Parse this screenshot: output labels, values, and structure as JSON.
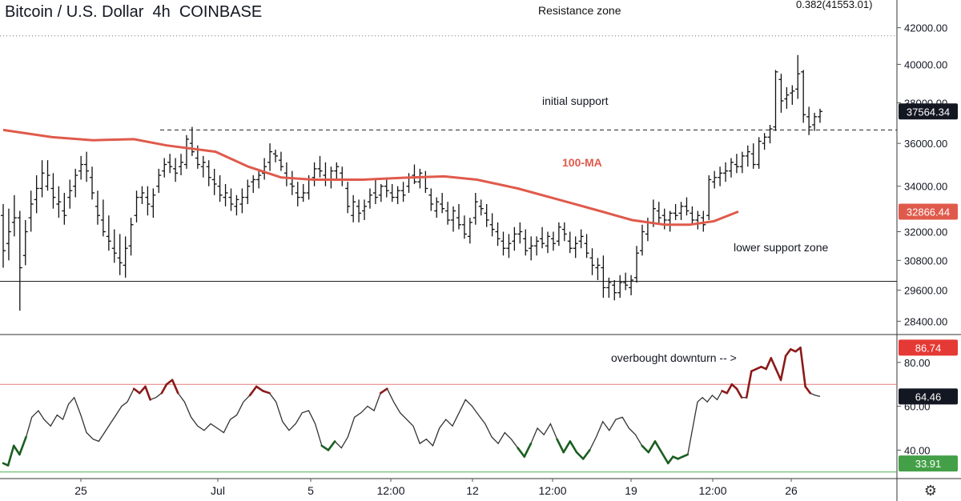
{
  "header": {
    "title": "Bitcoin / U.S. Dollar  4h  COINBASE"
  },
  "colors": {
    "ma": "#e05a4b",
    "rsi_line": "#333333",
    "overbought": "#e47b7b",
    "oversold": "#4caf50",
    "rsi_hot": "#8b1a1a",
    "rsi_cold": "#1b5e20",
    "price_tag_bg": "#131722",
    "ma_tag_bg": "#e05a4b",
    "rsi_tag_red": "#e53935",
    "rsi_tag_green": "#43a047"
  },
  "annotations": {
    "resistance_zone": "Resistance zone",
    "fib": "0.382(41553.01)",
    "initial_support": "initial support",
    "ma_label": "100-MA",
    "lower_support": "lower support zone",
    "overbought": "overbought downturn -- >"
  },
  "price_axis": {
    "ticks": [
      "42000.00",
      "40000.00",
      "38000.00",
      "36000.00",
      "34000.00",
      "32000.00",
      "30800.00",
      "29600.00",
      "28400.00"
    ]
  },
  "rsi_axis": {
    "ticks": [
      "80.00",
      "60.00",
      "40.00"
    ]
  },
  "time_axis": {
    "ticks": [
      "25",
      "Jul",
      "5",
      "12:00",
      "12",
      "12:00",
      "19",
      "12:00",
      "26"
    ]
  },
  "tags": {
    "last_price": "37564.34",
    "ma_value": "32866.44",
    "rsi_high": "86.74",
    "rsi_current": "64.46",
    "rsi_low": "33.91"
  },
  "icons": {
    "settings": "gear-icon"
  },
  "chart_data": {
    "type": "line",
    "title": "Bitcoin / U.S. Dollar  4h  COINBASE",
    "scale": "log",
    "ylim": [
      27900,
      42300
    ],
    "reference_levels": {
      "resistance_zone": 41553,
      "initial_support": 36650,
      "lower_support": 29950
    },
    "candles": [
      [
        32700,
        33200,
        30500,
        31200
      ],
      [
        31500,
        33000,
        30800,
        32000
      ],
      [
        32400,
        33600,
        31800,
        32600
      ],
      [
        32600,
        32900,
        28800,
        30500
      ],
      [
        31000,
        32500,
        30600,
        32000
      ],
      [
        32600,
        33800,
        32000,
        33200
      ],
      [
        33400,
        34500,
        32800,
        33900
      ],
      [
        33900,
        35200,
        33500,
        34600
      ],
      [
        34000,
        35200,
        33800,
        34500
      ],
      [
        33900,
        34600,
        33000,
        33500
      ],
      [
        33200,
        34000,
        32600,
        33300
      ],
      [
        32900,
        33700,
        32300,
        32700
      ],
      [
        33500,
        34300,
        33000,
        33800
      ],
      [
        34000,
        34800,
        33500,
        34500
      ],
      [
        34700,
        35400,
        34300,
        35000
      ],
      [
        35000,
        35600,
        34200,
        34700
      ],
      [
        34400,
        34900,
        33400,
        33700
      ],
      [
        33100,
        33800,
        32300,
        32700
      ],
      [
        32500,
        33400,
        31800,
        32000
      ],
      [
        31800,
        32700,
        31200,
        31600
      ],
      [
        31300,
        32100,
        30700,
        31100
      ],
      [
        30900,
        31900,
        30200,
        30700
      ],
      [
        30600,
        31800,
        30100,
        31300
      ],
      [
        31400,
        32600,
        31000,
        32300
      ],
      [
        32700,
        33800,
        32400,
        33500
      ],
      [
        33500,
        34000,
        33200,
        33700
      ],
      [
        33500,
        34000,
        32700,
        33200
      ],
      [
        33100,
        33900,
        32600,
        33600
      ],
      [
        34000,
        34800,
        33700,
        34500
      ],
      [
        34700,
        35300,
        34400,
        35000
      ],
      [
        35100,
        35500,
        34600,
        34900
      ],
      [
        34800,
        35300,
        34200,
        34600
      ],
      [
        34900,
        35500,
        34500,
        35100
      ],
      [
        35000,
        36400,
        34800,
        36200
      ],
      [
        36000,
        36800,
        35400,
        35600
      ],
      [
        35300,
        35900,
        34800,
        35000
      ],
      [
        34900,
        35400,
        34400,
        35100
      ],
      [
        34900,
        35200,
        34000,
        34400
      ],
      [
        34300,
        34800,
        33600,
        34100
      ],
      [
        34000,
        34500,
        33300,
        33600
      ],
      [
        33500,
        34100,
        33100,
        33700
      ],
      [
        33500,
        33900,
        32900,
        33200
      ],
      [
        33100,
        33600,
        32700,
        33400
      ],
      [
        33200,
        33900,
        32800,
        33500
      ],
      [
        33500,
        34300,
        33200,
        34000
      ],
      [
        34200,
        34500,
        33700,
        34300
      ],
      [
        34300,
        34700,
        33900,
        34500
      ],
      [
        34600,
        35300,
        34300,
        34900
      ],
      [
        35100,
        36000,
        34700,
        35600
      ],
      [
        35500,
        35700,
        35100,
        35400
      ],
      [
        35200,
        35600,
        34700,
        34900
      ],
      [
        34600,
        35100,
        34000,
        34400
      ],
      [
        34100,
        34700,
        33600,
        34000
      ],
      [
        33700,
        34200,
        33100,
        33500
      ],
      [
        33500,
        34100,
        33300,
        33700
      ],
      [
        33700,
        34500,
        33400,
        34300
      ],
      [
        34400,
        35100,
        34000,
        34800
      ],
      [
        34800,
        35400,
        34400,
        34700
      ],
      [
        34500,
        35100,
        34000,
        34300
      ],
      [
        34300,
        34900,
        33900,
        34700
      ],
      [
        34700,
        35100,
        34300,
        34900
      ],
      [
        34600,
        34900,
        34000,
        34300
      ],
      [
        33900,
        34200,
        32800,
        33100
      ],
      [
        32700,
        33600,
        32400,
        33300
      ],
      [
        33100,
        33400,
        32400,
        32800
      ],
      [
        32900,
        33400,
        32500,
        33100
      ],
      [
        33300,
        33900,
        33000,
        33600
      ],
      [
        33700,
        34300,
        33200,
        33500
      ],
      [
        33600,
        34100,
        33300,
        34000
      ],
      [
        34000,
        34400,
        33500,
        33800
      ],
      [
        33700,
        34100,
        33300,
        33500
      ],
      [
        33500,
        34000,
        33200,
        33800
      ],
      [
        33800,
        34200,
        33300,
        33600
      ],
      [
        34000,
        34600,
        33700,
        34400
      ],
      [
        34500,
        35000,
        34100,
        34200
      ],
      [
        34200,
        34800,
        33900,
        34600
      ],
      [
        34400,
        34700,
        33700,
        33900
      ],
      [
        33600,
        33900,
        32900,
        33200
      ],
      [
        32900,
        33500,
        32600,
        33300
      ],
      [
        33200,
        33700,
        32800,
        33000
      ],
      [
        32900,
        33300,
        32300,
        32500
      ],
      [
        32500,
        33100,
        32000,
        32900
      ],
      [
        32600,
        33200,
        32100,
        32300
      ],
      [
        32300,
        32700,
        31700,
        31900
      ],
      [
        31800,
        32600,
        31500,
        32400
      ],
      [
        32600,
        33700,
        32300,
        33300
      ],
      [
        33100,
        33400,
        32700,
        33000
      ],
      [
        32800,
        33200,
        32200,
        32500
      ],
      [
        32300,
        32800,
        31800,
        32100
      ],
      [
        32000,
        32400,
        31400,
        31700
      ],
      [
        31600,
        32000,
        31000,
        31300
      ],
      [
        31300,
        31900,
        30900,
        31500
      ],
      [
        31600,
        32200,
        31200,
        31900
      ],
      [
        31900,
        32400,
        31500,
        32000
      ],
      [
        31700,
        32100,
        31000,
        31200
      ],
      [
        31300,
        31800,
        30800,
        31400
      ],
      [
        31400,
        31800,
        31000,
        31600
      ],
      [
        31700,
        32200,
        31300,
        31500
      ],
      [
        31400,
        32000,
        31100,
        31800
      ],
      [
        31700,
        32000,
        31200,
        31500
      ],
      [
        31600,
        32400,
        31400,
        32200
      ],
      [
        32100,
        32400,
        31600,
        31900
      ],
      [
        31600,
        32000,
        31100,
        31300
      ],
      [
        31300,
        31800,
        30900,
        31500
      ],
      [
        31600,
        32100,
        31300,
        31800
      ],
      [
        31500,
        31900,
        30900,
        31100
      ],
      [
        30900,
        31300,
        30200,
        30600
      ],
      [
        30500,
        30900,
        30000,
        30600
      ],
      [
        30500,
        31000,
        29300,
        29700
      ],
      [
        29700,
        30100,
        29300,
        29900
      ],
      [
        29800,
        30000,
        29200,
        29500
      ],
      [
        29500,
        30200,
        29300,
        29900
      ],
      [
        29900,
        30300,
        29600,
        29800
      ],
      [
        29700,
        30200,
        29400,
        30000
      ],
      [
        30100,
        31400,
        29900,
        31100
      ],
      [
        31200,
        32300,
        31000,
        32000
      ],
      [
        31900,
        32600,
        31600,
        32400
      ],
      [
        32400,
        33400,
        32200,
        33000
      ],
      [
        32900,
        33300,
        32300,
        32600
      ],
      [
        32700,
        33000,
        32100,
        32500
      ],
      [
        32500,
        32900,
        32000,
        32800
      ],
      [
        32800,
        33200,
        32500,
        32700
      ],
      [
        32800,
        33300,
        32500,
        33100
      ],
      [
        33100,
        33500,
        32700,
        32900
      ],
      [
        32800,
        33100,
        32300,
        32500
      ],
      [
        32500,
        32900,
        32100,
        32700
      ],
      [
        32600,
        32900,
        32000,
        32300
      ],
      [
        32700,
        34500,
        32500,
        34300
      ],
      [
        34200,
        34700,
        33900,
        34400
      ],
      [
        34400,
        34900,
        34000,
        34600
      ],
      [
        34600,
        35100,
        34200,
        34700
      ],
      [
        34700,
        35300,
        34400,
        35100
      ],
      [
        35000,
        35500,
        34600,
        34900
      ],
      [
        34900,
        35600,
        34600,
        35400
      ],
      [
        35400,
        35900,
        34900,
        35600
      ],
      [
        35500,
        36000,
        34800,
        35000
      ],
      [
        35000,
        36300,
        34800,
        36100
      ],
      [
        36000,
        36500,
        35700,
        36300
      ],
      [
        36300,
        36900,
        36000,
        36700
      ],
      [
        36800,
        39700,
        36600,
        39600
      ],
      [
        39200,
        39500,
        37500,
        38100
      ],
      [
        38200,
        38800,
        37700,
        38400
      ],
      [
        38500,
        38900,
        37900,
        38600
      ],
      [
        38700,
        40500,
        38200,
        39500
      ],
      [
        39600,
        39700,
        37000,
        37400
      ],
      [
        37300,
        37800,
        36400,
        36800
      ],
      [
        36900,
        37500,
        36600,
        37300
      ],
      [
        37300,
        37700,
        37000,
        37564
      ]
    ],
    "ma100": [
      [
        0,
        36650
      ],
      [
        0.06,
        36300
      ],
      [
        0.11,
        36150
      ],
      [
        0.16,
        36200
      ],
      [
        0.2,
        35900
      ],
      [
        0.26,
        35600
      ],
      [
        0.3,
        34900
      ],
      [
        0.34,
        34400
      ],
      [
        0.38,
        34300
      ],
      [
        0.44,
        34300
      ],
      [
        0.5,
        34400
      ],
      [
        0.54,
        34450
      ],
      [
        0.58,
        34300
      ],
      [
        0.63,
        33900
      ],
      [
        0.68,
        33400
      ],
      [
        0.73,
        32900
      ],
      [
        0.77,
        32500
      ],
      [
        0.81,
        32300
      ],
      [
        0.84,
        32300
      ],
      [
        0.87,
        32450
      ],
      [
        0.9,
        32870
      ]
    ],
    "rsi": [
      [
        0,
        34
      ],
      [
        0.006,
        33
      ],
      [
        0.013,
        42
      ],
      [
        0.02,
        38
      ],
      [
        0.028,
        46
      ],
      [
        0.035,
        55
      ],
      [
        0.043,
        58
      ],
      [
        0.05,
        54
      ],
      [
        0.058,
        51
      ],
      [
        0.066,
        56
      ],
      [
        0.073,
        54
      ],
      [
        0.08,
        61
      ],
      [
        0.087,
        64
      ],
      [
        0.095,
        56
      ],
      [
        0.102,
        48
      ],
      [
        0.11,
        45
      ],
      [
        0.117,
        44
      ],
      [
        0.124,
        48
      ],
      [
        0.131,
        52
      ],
      [
        0.138,
        56
      ],
      [
        0.145,
        60
      ],
      [
        0.152,
        62
      ],
      [
        0.16,
        68
      ],
      [
        0.167,
        66
      ],
      [
        0.174,
        69
      ],
      [
        0.18,
        63
      ],
      [
        0.187,
        64
      ],
      [
        0.194,
        66
      ],
      [
        0.2,
        70
      ],
      [
        0.207,
        72
      ],
      [
        0.214,
        66
      ],
      [
        0.222,
        62
      ],
      [
        0.23,
        55
      ],
      [
        0.238,
        51
      ],
      [
        0.246,
        49
      ],
      [
        0.254,
        52
      ],
      [
        0.262,
        50
      ],
      [
        0.27,
        48
      ],
      [
        0.278,
        54
      ],
      [
        0.286,
        56
      ],
      [
        0.294,
        62
      ],
      [
        0.302,
        65
      ],
      [
        0.31,
        69
      ],
      [
        0.318,
        67
      ],
      [
        0.326,
        66
      ],
      [
        0.334,
        62
      ],
      [
        0.342,
        53
      ],
      [
        0.35,
        49
      ],
      [
        0.358,
        52
      ],
      [
        0.366,
        57
      ],
      [
        0.374,
        58
      ],
      [
        0.382,
        52
      ],
      [
        0.39,
        42
      ],
      [
        0.398,
        40
      ],
      [
        0.406,
        44
      ],
      [
        0.414,
        41
      ],
      [
        0.422,
        46
      ],
      [
        0.43,
        55
      ],
      [
        0.438,
        57
      ],
      [
        0.446,
        60
      ],
      [
        0.454,
        58
      ],
      [
        0.462,
        66
      ],
      [
        0.47,
        68
      ],
      [
        0.478,
        62
      ],
      [
        0.486,
        57
      ],
      [
        0.494,
        54
      ],
      [
        0.502,
        51
      ],
      [
        0.51,
        43
      ],
      [
        0.518,
        45
      ],
      [
        0.526,
        42
      ],
      [
        0.534,
        50
      ],
      [
        0.542,
        54
      ],
      [
        0.55,
        51
      ],
      [
        0.558,
        57
      ],
      [
        0.566,
        63
      ],
      [
        0.574,
        60
      ],
      [
        0.582,
        56
      ],
      [
        0.59,
        52
      ],
      [
        0.598,
        46
      ],
      [
        0.606,
        43
      ],
      [
        0.614,
        48
      ],
      [
        0.622,
        45
      ],
      [
        0.63,
        41
      ],
      [
        0.638,
        37
      ],
      [
        0.646,
        43
      ],
      [
        0.654,
        50
      ],
      [
        0.662,
        47
      ],
      [
        0.67,
        52
      ],
      [
        0.678,
        45
      ],
      [
        0.686,
        39
      ],
      [
        0.694,
        44
      ],
      [
        0.702,
        39
      ],
      [
        0.71,
        36
      ],
      [
        0.718,
        40
      ],
      [
        0.726,
        46
      ],
      [
        0.734,
        53
      ],
      [
        0.742,
        49
      ],
      [
        0.75,
        54
      ],
      [
        0.758,
        55
      ],
      [
        0.766,
        50
      ],
      [
        0.774,
        47
      ],
      [
        0.782,
        42
      ],
      [
        0.79,
        39
      ],
      [
        0.798,
        44
      ],
      [
        0.806,
        39
      ],
      [
        0.814,
        34
      ],
      [
        0.82,
        37
      ],
      [
        0.826,
        36
      ],
      [
        0.832,
        37
      ],
      [
        0.838,
        38
      ],
      [
        0.844,
        50
      ],
      [
        0.85,
        62
      ],
      [
        0.856,
        64
      ],
      [
        0.862,
        62
      ],
      [
        0.868,
        65
      ],
      [
        0.874,
        63
      ],
      [
        0.88,
        67
      ],
      [
        0.886,
        66
      ],
      [
        0.892,
        70
      ],
      [
        0.898,
        68
      ],
      [
        0.904,
        64
      ],
      [
        0.91,
        64
      ],
      [
        0.916,
        76
      ],
      [
        0.922,
        77
      ],
      [
        0.928,
        78
      ],
      [
        0.934,
        77
      ],
      [
        0.94,
        82
      ],
      [
        0.946,
        77
      ],
      [
        0.952,
        72
      ],
      [
        0.958,
        83
      ],
      [
        0.964,
        86
      ],
      [
        0.97,
        85
      ],
      [
        0.976,
        86.74
      ],
      [
        0.982,
        69
      ],
      [
        0.988,
        66
      ],
      [
        0.994,
        65
      ],
      [
        1.0,
        64.46
      ]
    ],
    "rsi_levels": {
      "overbought": 70,
      "oversold": 30
    },
    "rsi_ylim": [
      27,
      92
    ]
  }
}
